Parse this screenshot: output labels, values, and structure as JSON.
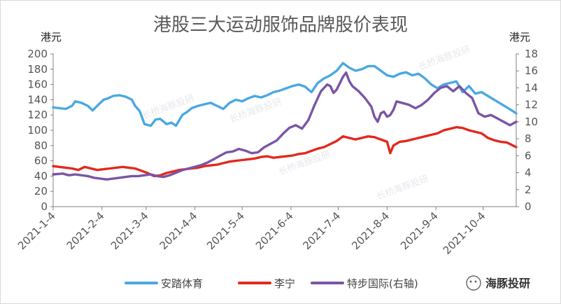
{
  "chart_data": {
    "type": "line",
    "title": "港股三大运动服饰品牌股价表现",
    "ylabel_left": "港元",
    "ylabel_right": "港元",
    "ylim_left": [
      0,
      200
    ],
    "ylim_right": [
      0,
      18
    ],
    "yticks_left": [
      0,
      20,
      40,
      60,
      80,
      100,
      120,
      140,
      160,
      180,
      200
    ],
    "yticks_right": [
      0,
      2,
      4,
      6,
      8,
      10,
      12,
      14,
      16,
      18
    ],
    "x_range": [
      0,
      294
    ],
    "x_ticks": [
      {
        "label": "2021-1-4",
        "day": 0
      },
      {
        "label": "2021-2-4",
        "day": 31
      },
      {
        "label": "2021-3-4",
        "day": 59
      },
      {
        "label": "2021-4-4",
        "day": 90
      },
      {
        "label": "2021-5-4",
        "day": 120
      },
      {
        "label": "2021-6-4",
        "day": 151
      },
      {
        "label": "2021-7-4",
        "day": 181
      },
      {
        "label": "2021-8-4",
        "day": 212
      },
      {
        "label": "2021-9-4",
        "day": 243
      },
      {
        "label": "2021-10-4",
        "day": 273
      }
    ],
    "legend_position": "bottom",
    "series": [
      {
        "name": "安踏体育",
        "axis": "left",
        "color": "#4aa8e2",
        "x": [
          0,
          8,
          12,
          14,
          18,
          22,
          25,
          28,
          32,
          35,
          38,
          42,
          46,
          50,
          52,
          55,
          58,
          62,
          65,
          68,
          72,
          75,
          78,
          82,
          85,
          88,
          92,
          96,
          100,
          104,
          108,
          112,
          116,
          120,
          124,
          128,
          132,
          136,
          140,
          144,
          148,
          152,
          156,
          160,
          164,
          168,
          172,
          176,
          180,
          184,
          188,
          192,
          196,
          200,
          204,
          208,
          212,
          216,
          220,
          224,
          228,
          232,
          236,
          240,
          244,
          248,
          252,
          256,
          260,
          264,
          268,
          272,
          276,
          280,
          284,
          288,
          292,
          294
        ],
        "y": [
          130,
          128,
          132,
          138,
          136,
          132,
          126,
          132,
          140,
          142,
          145,
          146,
          144,
          140,
          132,
          125,
          108,
          106,
          114,
          115,
          108,
          110,
          106,
          120,
          124,
          129,
          132,
          134,
          136,
          132,
          128,
          136,
          140,
          138,
          142,
          145,
          143,
          146,
          150,
          152,
          155,
          158,
          160,
          157,
          150,
          162,
          168,
          172,
          178,
          188,
          182,
          178,
          180,
          184,
          184,
          178,
          172,
          170,
          174,
          176,
          172,
          174,
          168,
          160,
          155,
          160,
          162,
          164,
          150,
          158,
          148,
          150,
          145,
          140,
          135,
          130,
          125,
          122
        ]
      },
      {
        "name": "李宁",
        "axis": "left",
        "color": "#e3281e",
        "x": [
          0,
          8,
          12,
          16,
          20,
          24,
          28,
          32,
          36,
          40,
          44,
          48,
          52,
          56,
          60,
          64,
          68,
          72,
          76,
          80,
          84,
          88,
          92,
          96,
          100,
          104,
          108,
          112,
          116,
          120,
          124,
          128,
          132,
          136,
          140,
          144,
          148,
          152,
          156,
          160,
          164,
          168,
          172,
          176,
          180,
          184,
          188,
          192,
          196,
          200,
          204,
          208,
          212,
          214,
          216,
          220,
          224,
          228,
          232,
          236,
          240,
          244,
          248,
          252,
          256,
          260,
          264,
          268,
          272,
          276,
          280,
          284,
          288,
          292,
          294
        ],
        "y": [
          53,
          51,
          50,
          48,
          52,
          50,
          48,
          49,
          50,
          51,
          52,
          51,
          50,
          47,
          44,
          40,
          41,
          44,
          46,
          48,
          49,
          50,
          51,
          53,
          54,
          55,
          57,
          59,
          60,
          61,
          62,
          63,
          65,
          66,
          64,
          65,
          66,
          67,
          69,
          70,
          73,
          76,
          78,
          82,
          86,
          92,
          90,
          88,
          90,
          92,
          91,
          88,
          85,
          70,
          80,
          85,
          86,
          88,
          90,
          92,
          94,
          96,
          100,
          102,
          104,
          103,
          100,
          98,
          96,
          90,
          87,
          85,
          84,
          80,
          78
        ]
      },
      {
        "name": "特步国际(右轴)",
        "axis": "right",
        "color": "#7a55a4",
        "x": [
          0,
          6,
          10,
          14,
          18,
          22,
          26,
          30,
          34,
          38,
          42,
          46,
          50,
          54,
          58,
          62,
          66,
          70,
          74,
          78,
          82,
          86,
          90,
          94,
          98,
          102,
          106,
          110,
          114,
          118,
          122,
          126,
          130,
          134,
          138,
          142,
          146,
          150,
          154,
          158,
          162,
          166,
          170,
          174,
          176,
          178,
          180,
          184,
          186,
          188,
          190,
          194,
          198,
          202,
          204,
          206,
          208,
          210,
          212,
          214,
          216,
          218,
          222,
          226,
          230,
          234,
          238,
          242,
          246,
          250,
          254,
          258,
          262,
          266,
          270,
          274,
          278,
          282,
          286,
          290,
          294
        ],
        "y": [
          3.8,
          3.9,
          3.7,
          3.8,
          3.7,
          3.6,
          3.4,
          3.3,
          3.2,
          3.3,
          3.4,
          3.5,
          3.6,
          3.6,
          3.7,
          3.8,
          3.6,
          3.5,
          3.7,
          4.0,
          4.3,
          4.5,
          4.7,
          4.9,
          5.2,
          5.6,
          6.0,
          6.4,
          6.5,
          6.8,
          6.6,
          6.3,
          6.4,
          7.0,
          7.4,
          7.8,
          8.6,
          9.3,
          9.6,
          9.2,
          10.2,
          12.0,
          13.6,
          14.4,
          14.2,
          13.4,
          13.8,
          15.3,
          15.8,
          14.8,
          14.2,
          13.6,
          12.8,
          11.8,
          10.6,
          10.0,
          11.0,
          11.2,
          10.6,
          10.8,
          11.4,
          12.4,
          12.2,
          12.0,
          11.6,
          12.0,
          12.6,
          13.4,
          14.0,
          14.2,
          13.6,
          14.2,
          13.4,
          12.8,
          11.0,
          10.6,
          10.8,
          10.4,
          10.0,
          9.6,
          10.0
        ]
      }
    ]
  },
  "watermark": "长桥海豚投研",
  "brand": {
    "label": "海豚投研"
  }
}
